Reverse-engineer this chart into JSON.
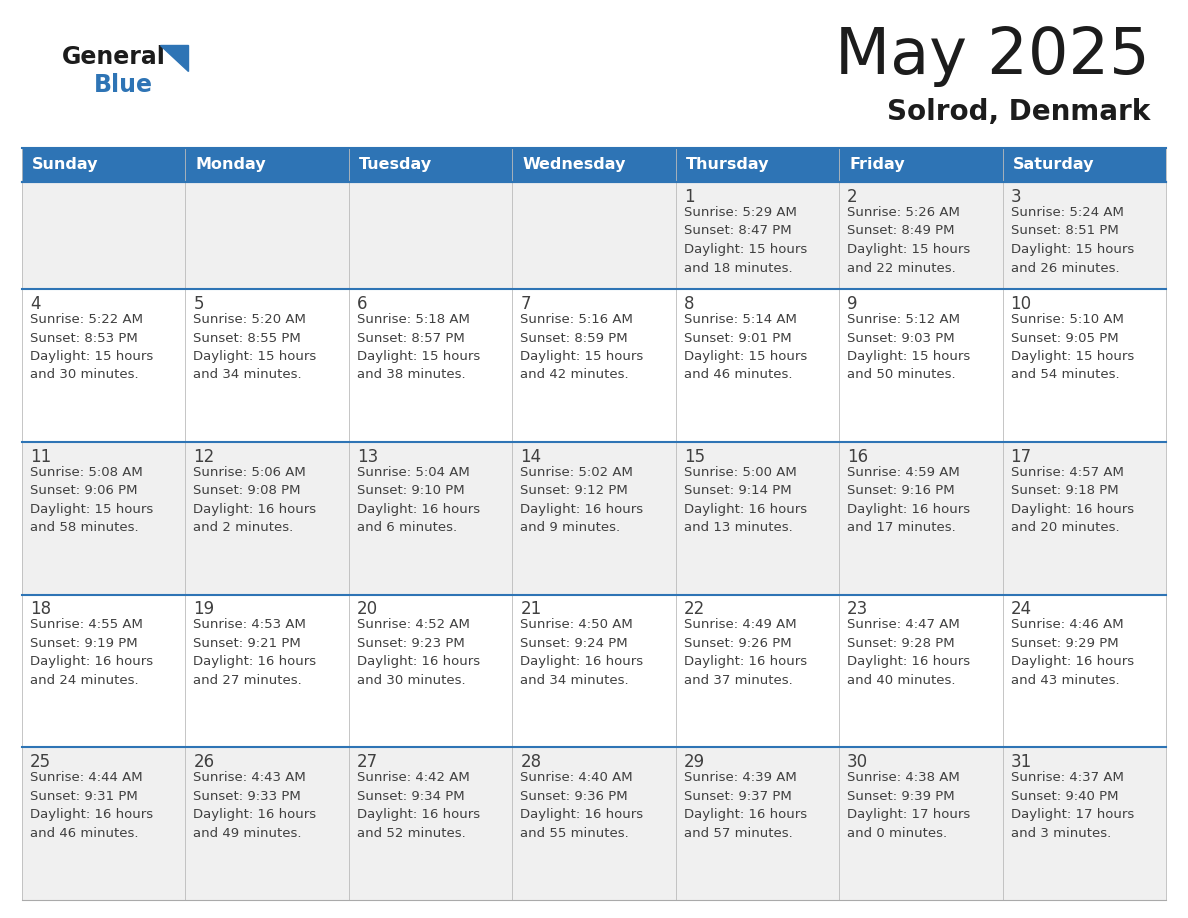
{
  "title": "May 2025",
  "subtitle": "Solrod, Denmark",
  "header_color": "#2E74B5",
  "header_text_color": "#FFFFFF",
  "cell_bg_row0": "#F0F0F0",
  "cell_bg_row1": "#FFFFFF",
  "text_color": "#404040",
  "days_of_week": [
    "Sunday",
    "Monday",
    "Tuesday",
    "Wednesday",
    "Thursday",
    "Friday",
    "Saturday"
  ],
  "weeks": [
    [
      {
        "day": "",
        "info": ""
      },
      {
        "day": "",
        "info": ""
      },
      {
        "day": "",
        "info": ""
      },
      {
        "day": "",
        "info": ""
      },
      {
        "day": "1",
        "info": "Sunrise: 5:29 AM\nSunset: 8:47 PM\nDaylight: 15 hours\nand 18 minutes."
      },
      {
        "day": "2",
        "info": "Sunrise: 5:26 AM\nSunset: 8:49 PM\nDaylight: 15 hours\nand 22 minutes."
      },
      {
        "day": "3",
        "info": "Sunrise: 5:24 AM\nSunset: 8:51 PM\nDaylight: 15 hours\nand 26 minutes."
      }
    ],
    [
      {
        "day": "4",
        "info": "Sunrise: 5:22 AM\nSunset: 8:53 PM\nDaylight: 15 hours\nand 30 minutes."
      },
      {
        "day": "5",
        "info": "Sunrise: 5:20 AM\nSunset: 8:55 PM\nDaylight: 15 hours\nand 34 minutes."
      },
      {
        "day": "6",
        "info": "Sunrise: 5:18 AM\nSunset: 8:57 PM\nDaylight: 15 hours\nand 38 minutes."
      },
      {
        "day": "7",
        "info": "Sunrise: 5:16 AM\nSunset: 8:59 PM\nDaylight: 15 hours\nand 42 minutes."
      },
      {
        "day": "8",
        "info": "Sunrise: 5:14 AM\nSunset: 9:01 PM\nDaylight: 15 hours\nand 46 minutes."
      },
      {
        "day": "9",
        "info": "Sunrise: 5:12 AM\nSunset: 9:03 PM\nDaylight: 15 hours\nand 50 minutes."
      },
      {
        "day": "10",
        "info": "Sunrise: 5:10 AM\nSunset: 9:05 PM\nDaylight: 15 hours\nand 54 minutes."
      }
    ],
    [
      {
        "day": "11",
        "info": "Sunrise: 5:08 AM\nSunset: 9:06 PM\nDaylight: 15 hours\nand 58 minutes."
      },
      {
        "day": "12",
        "info": "Sunrise: 5:06 AM\nSunset: 9:08 PM\nDaylight: 16 hours\nand 2 minutes."
      },
      {
        "day": "13",
        "info": "Sunrise: 5:04 AM\nSunset: 9:10 PM\nDaylight: 16 hours\nand 6 minutes."
      },
      {
        "day": "14",
        "info": "Sunrise: 5:02 AM\nSunset: 9:12 PM\nDaylight: 16 hours\nand 9 minutes."
      },
      {
        "day": "15",
        "info": "Sunrise: 5:00 AM\nSunset: 9:14 PM\nDaylight: 16 hours\nand 13 minutes."
      },
      {
        "day": "16",
        "info": "Sunrise: 4:59 AM\nSunset: 9:16 PM\nDaylight: 16 hours\nand 17 minutes."
      },
      {
        "day": "17",
        "info": "Sunrise: 4:57 AM\nSunset: 9:18 PM\nDaylight: 16 hours\nand 20 minutes."
      }
    ],
    [
      {
        "day": "18",
        "info": "Sunrise: 4:55 AM\nSunset: 9:19 PM\nDaylight: 16 hours\nand 24 minutes."
      },
      {
        "day": "19",
        "info": "Sunrise: 4:53 AM\nSunset: 9:21 PM\nDaylight: 16 hours\nand 27 minutes."
      },
      {
        "day": "20",
        "info": "Sunrise: 4:52 AM\nSunset: 9:23 PM\nDaylight: 16 hours\nand 30 minutes."
      },
      {
        "day": "21",
        "info": "Sunrise: 4:50 AM\nSunset: 9:24 PM\nDaylight: 16 hours\nand 34 minutes."
      },
      {
        "day": "22",
        "info": "Sunrise: 4:49 AM\nSunset: 9:26 PM\nDaylight: 16 hours\nand 37 minutes."
      },
      {
        "day": "23",
        "info": "Sunrise: 4:47 AM\nSunset: 9:28 PM\nDaylight: 16 hours\nand 40 minutes."
      },
      {
        "day": "24",
        "info": "Sunrise: 4:46 AM\nSunset: 9:29 PM\nDaylight: 16 hours\nand 43 minutes."
      }
    ],
    [
      {
        "day": "25",
        "info": "Sunrise: 4:44 AM\nSunset: 9:31 PM\nDaylight: 16 hours\nand 46 minutes."
      },
      {
        "day": "26",
        "info": "Sunrise: 4:43 AM\nSunset: 9:33 PM\nDaylight: 16 hours\nand 49 minutes."
      },
      {
        "day": "27",
        "info": "Sunrise: 4:42 AM\nSunset: 9:34 PM\nDaylight: 16 hours\nand 52 minutes."
      },
      {
        "day": "28",
        "info": "Sunrise: 4:40 AM\nSunset: 9:36 PM\nDaylight: 16 hours\nand 55 minutes."
      },
      {
        "day": "29",
        "info": "Sunrise: 4:39 AM\nSunset: 9:37 PM\nDaylight: 16 hours\nand 57 minutes."
      },
      {
        "day": "30",
        "info": "Sunrise: 4:38 AM\nSunset: 9:39 PM\nDaylight: 17 hours\nand 0 minutes."
      },
      {
        "day": "31",
        "info": "Sunrise: 4:37 AM\nSunset: 9:40 PM\nDaylight: 17 hours\nand 3 minutes."
      }
    ]
  ],
  "fig_width": 11.88,
  "fig_height": 9.18,
  "dpi": 100
}
